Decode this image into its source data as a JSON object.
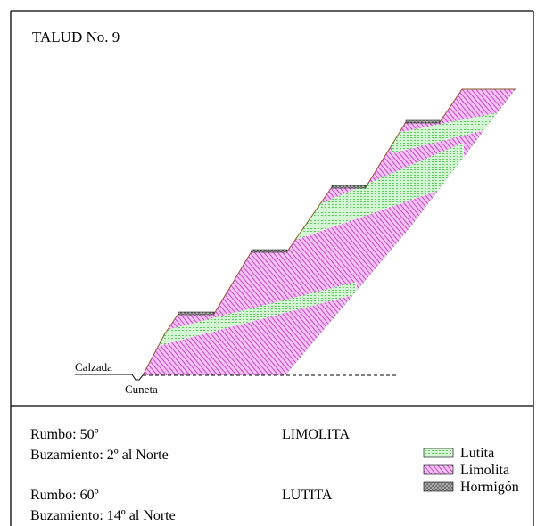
{
  "title": "TALUD No. 9",
  "labels": {
    "calzada": "Calzada",
    "cuneta": "Cuneta"
  },
  "info": [
    {
      "rumbo": "Rumbo: 50º",
      "buzamiento": "Buzamiento: 2º al Norte",
      "rock": "LIMOLITA"
    },
    {
      "rumbo": "Rumbo: 60º",
      "buzamiento": "Buzamiento: 14º al Norte",
      "rock": "LUTITA"
    }
  ],
  "legend": [
    {
      "label": "Lutita",
      "color": "#8ee88e",
      "pattern": "lutita-hatch"
    },
    {
      "label": "Limolita",
      "color": "#e36be3",
      "pattern": "limolita-hatch"
    },
    {
      "label": "Hormigón",
      "color": "#555555",
      "pattern": "hormigon-texture"
    }
  ],
  "colors": {
    "lutita": "#8ee88e",
    "limolita": "#e36be3",
    "border": "#000000"
  }
}
